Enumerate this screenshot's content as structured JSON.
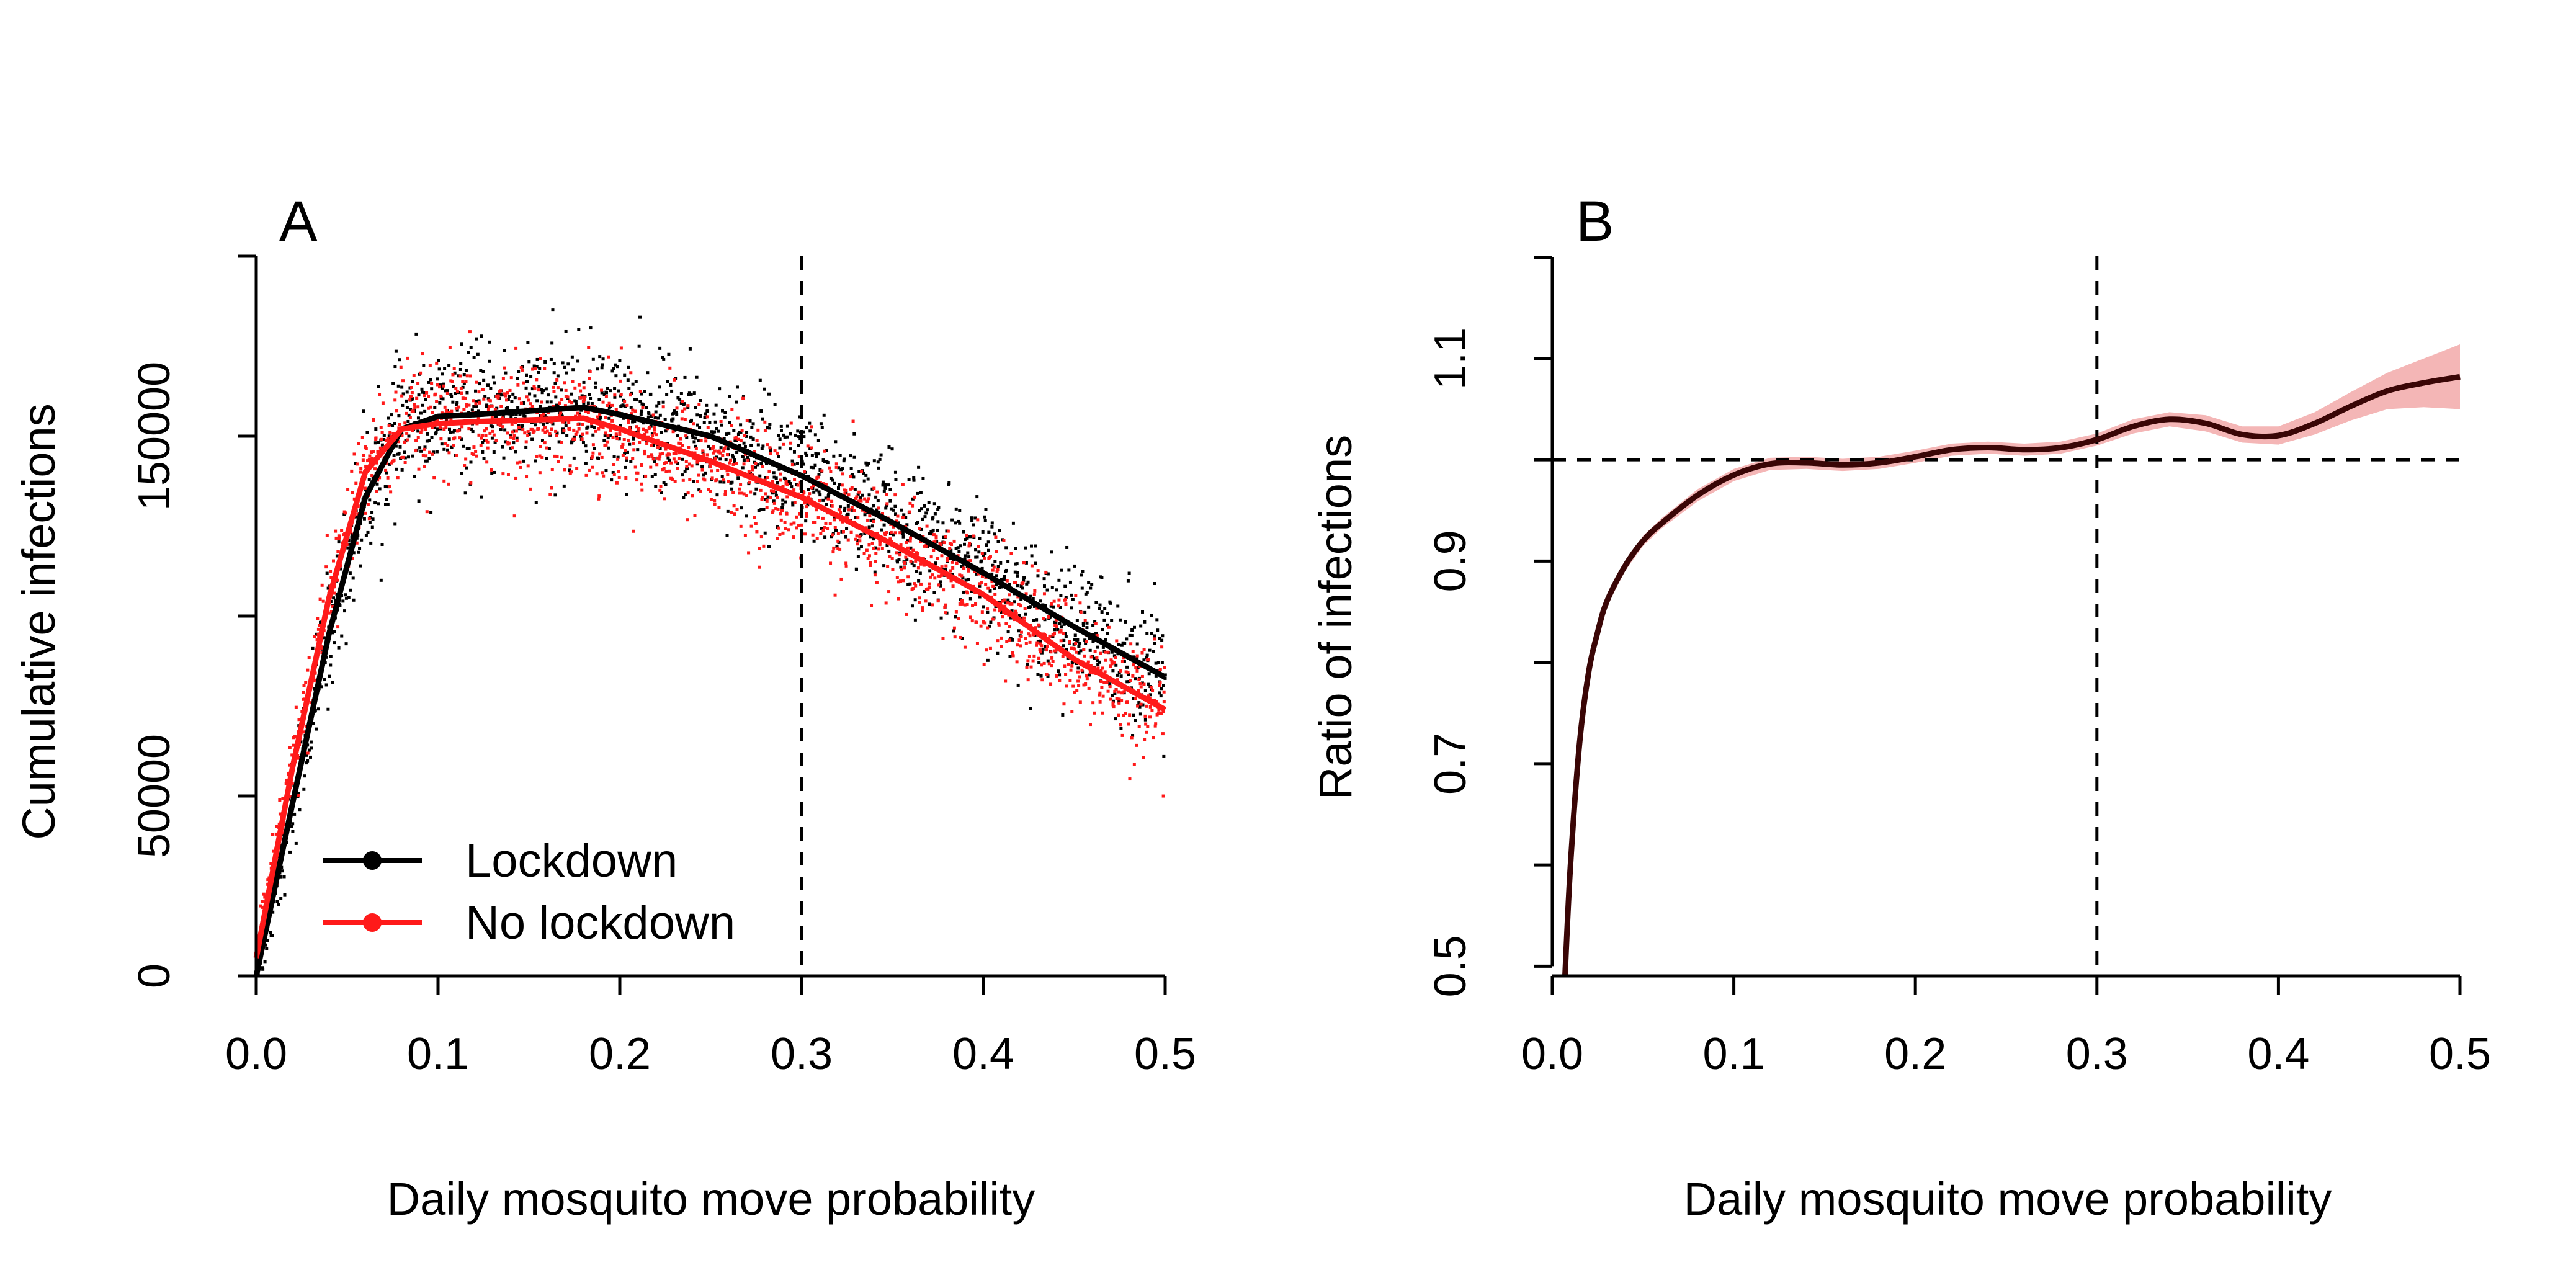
{
  "chart_data": [
    {
      "type": "scatter",
      "panel_label": "A",
      "xlabel": "Daily mosquito move probability",
      "ylabel": "Cumulative infections",
      "xlim": [
        0,
        0.5
      ],
      "ylim": [
        0,
        200000
      ],
      "xticks": [
        0,
        0.1,
        0.2,
        0.3,
        0.4,
        0.5
      ],
      "xtick_labels": [
        "0.0",
        "0.1",
        "0.2",
        "0.3",
        "0.4",
        "0.5"
      ],
      "yticks": [
        0,
        50000,
        100000,
        150000,
        200000
      ],
      "ytick_labels": [
        "0",
        "50000",
        "",
        "150000",
        ""
      ],
      "vline_x": 0.3,
      "legend": {
        "position": "bottom-left"
      },
      "series": [
        {
          "name": "Lockdown",
          "color": "#000000",
          "smooth_x": [
            0,
            0.02,
            0.04,
            0.06,
            0.08,
            0.1,
            0.12,
            0.15,
            0.18,
            0.2,
            0.25,
            0.3,
            0.35,
            0.4,
            0.45,
            0.5
          ],
          "smooth_y": [
            0,
            48000,
            95000,
            133000,
            152000,
            155500,
            156000,
            157000,
            158000,
            156000,
            150000,
            139000,
            126000,
            112000,
            97000,
            83000
          ],
          "scatter_spread": 9000
        },
        {
          "name": "No lockdown",
          "color": "#ff1a1a",
          "smooth_x": [
            0,
            0.02,
            0.04,
            0.06,
            0.08,
            0.1,
            0.12,
            0.15,
            0.18,
            0.2,
            0.25,
            0.3,
            0.35,
            0.4,
            0.45,
            0.5
          ],
          "smooth_y": [
            5000,
            58000,
            105000,
            140000,
            152000,
            153500,
            154000,
            154500,
            155000,
            152000,
            143000,
            133000,
            120000,
            106000,
            88000,
            74000
          ],
          "scatter_spread": 8000
        }
      ]
    },
    {
      "type": "line",
      "panel_label": "B",
      "xlabel": "Daily mosquito move probability",
      "ylabel": "Ratio of infections",
      "xlim": [
        0,
        0.5
      ],
      "ylim": [
        0.48,
        1.22
      ],
      "xticks": [
        0,
        0.1,
        0.2,
        0.3,
        0.4,
        0.5
      ],
      "xtick_labels": [
        "0.0",
        "0.1",
        "0.2",
        "0.3",
        "0.4",
        "0.5"
      ],
      "yticks": [
        0.5,
        0.6,
        0.7,
        0.8,
        0.9,
        1.0,
        1.1,
        1.2
      ],
      "ytick_labels": [
        "0.5",
        "",
        "0.7",
        "",
        "0.9",
        "",
        "1.1",
        ""
      ],
      "hline_y": 1.0,
      "vline_x": 0.3,
      "band_color": "#f4b6b6",
      "line_color": "#3a0606",
      "x": [
        0.007,
        0.01,
        0.015,
        0.02,
        0.025,
        0.03,
        0.04,
        0.05,
        0.06,
        0.08,
        0.1,
        0.12,
        0.14,
        0.16,
        0.18,
        0.2,
        0.22,
        0.24,
        0.26,
        0.28,
        0.3,
        0.32,
        0.34,
        0.36,
        0.38,
        0.4,
        0.42,
        0.44,
        0.46,
        0.48,
        0.5
      ],
      "y": [
        0.48,
        0.6,
        0.72,
        0.79,
        0.83,
        0.86,
        0.895,
        0.92,
        0.937,
        0.965,
        0.985,
        0.996,
        0.997,
        0.995,
        0.997,
        1.003,
        1.01,
        1.012,
        1.01,
        1.012,
        1.02,
        1.033,
        1.04,
        1.036,
        1.025,
        1.024,
        1.036,
        1.053,
        1.068,
        1.076,
        1.082
      ],
      "band_halfwidth": [
        0.005,
        0.005,
        0.005,
        0.005,
        0.005,
        0.005,
        0.005,
        0.005,
        0.005,
        0.006,
        0.006,
        0.006,
        0.006,
        0.006,
        0.006,
        0.006,
        0.006,
        0.006,
        0.006,
        0.006,
        0.006,
        0.007,
        0.007,
        0.008,
        0.008,
        0.009,
        0.011,
        0.014,
        0.018,
        0.024,
        0.032
      ]
    }
  ],
  "legend_items": [
    "Lockdown",
    "No lockdown"
  ]
}
